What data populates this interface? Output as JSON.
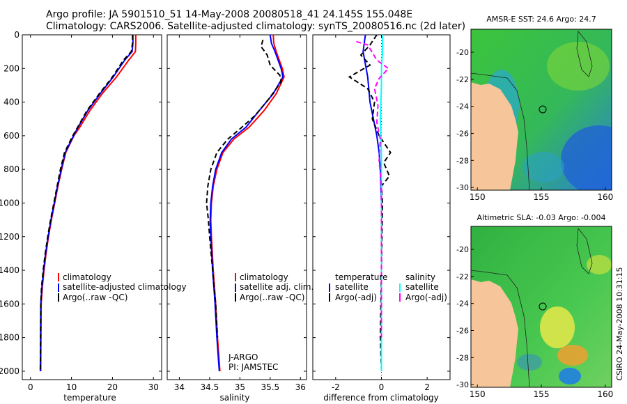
{
  "header": {
    "line1": "Argo profile: JA 5901510_51 14-May-2008 20080518_41 24.145S 155.048E",
    "line2": "Climatology: CARS2006. Satellite-adjusted climatology: synTS_20080516.nc (2d later)"
  },
  "side_label": "CSIRO 24-May-2008 10:31:15",
  "colors": {
    "climatology": "#ff0000",
    "satellite": "#0000ff",
    "argo": "#000000",
    "satellite_salinity": "#00ffff",
    "argo_salinity_adj": "#ff00ff",
    "land": "#f7c59a",
    "map_blue": "#2060e0",
    "map_green": "#3ec84a",
    "map_yellow": "#e8e84a"
  },
  "chart_data": [
    {
      "type": "line",
      "panel": "temperature",
      "xlabel": "temperature",
      "ylabel": "",
      "xlim": [
        -2,
        32
      ],
      "ylim": [
        2050,
        0
      ],
      "xticks": [
        0,
        10,
        20,
        30
      ],
      "yticks": [
        0,
        200,
        400,
        600,
        800,
        1000,
        1200,
        1400,
        1600,
        1800,
        2000
      ],
      "legend": [
        "climatology",
        "satellite-adjusted climatology",
        "Argo(..raw -QC)"
      ],
      "legend_position": "lower-right",
      "series": [
        {
          "name": "climatology",
          "color": "#ff0000",
          "x": [
            25.7,
            25.7,
            25.6,
            24.0,
            21.0,
            17.5,
            14.5,
            12.0,
            10.6,
            9.6,
            8.6,
            7.6,
            6.7,
            5.9,
            5.1,
            4.4,
            3.8,
            3.3,
            2.9,
            2.6,
            2.5
          ],
          "y": [
            0,
            50,
            100,
            150,
            250,
            350,
            450,
            550,
            600,
            650,
            700,
            800,
            900,
            1000,
            1100,
            1200,
            1300,
            1400,
            1500,
            1600,
            2000
          ]
        },
        {
          "name": "satellite-adjusted climatology",
          "color": "#0000ff",
          "x": [
            25.0,
            25.0,
            24.8,
            23.0,
            20.2,
            17.0,
            14.0,
            11.6,
            10.5,
            9.5,
            8.5,
            7.5,
            6.6,
            5.8,
            5.0,
            4.3,
            3.7,
            3.2,
            2.8,
            2.5,
            2.4
          ],
          "y": [
            0,
            50,
            100,
            150,
            250,
            350,
            450,
            550,
            600,
            650,
            700,
            800,
            900,
            1000,
            1100,
            1200,
            1300,
            1400,
            1500,
            1600,
            2000
          ]
        },
        {
          "name": "Argo(..raw -QC)",
          "color": "#000000",
          "x": [
            24.9,
            24.9,
            24.6,
            22.7,
            20.0,
            16.8,
            13.8,
            11.5,
            10.3,
            9.3,
            8.3,
            7.3,
            6.5,
            5.7,
            4.9,
            4.2,
            3.6,
            3.1,
            2.7,
            2.5,
            2.4
          ],
          "y": [
            0,
            50,
            100,
            150,
            250,
            350,
            450,
            550,
            600,
            650,
            700,
            800,
            900,
            1000,
            1100,
            1200,
            1300,
            1400,
            1500,
            1600,
            1990
          ]
        }
      ]
    },
    {
      "type": "line",
      "panel": "salinity",
      "xlabel": "salinity",
      "ylabel": "",
      "xlim": [
        33.8,
        36.1
      ],
      "ylim": [
        2050,
        0
      ],
      "xticks": [
        34,
        34.5,
        35,
        35.5,
        36
      ],
      "legend": [
        "climatology",
        "satellite adj. clim.",
        "Argo(..raw -QC)"
      ],
      "legend_position": "lower-right",
      "annotation": [
        "J-ARGO",
        "PI: JAMSTEC"
      ],
      "series": [
        {
          "name": "climatology",
          "color": "#ff0000",
          "x": [
            35.55,
            35.56,
            35.6,
            35.7,
            35.73,
            35.6,
            35.4,
            35.15,
            34.9,
            34.72,
            34.62,
            34.56,
            34.53,
            34.52,
            34.53,
            34.56,
            34.6,
            34.63,
            34.66,
            34.67
          ],
          "y": [
            0,
            50,
            100,
            200,
            250,
            350,
            450,
            550,
            620,
            700,
            800,
            900,
            1000,
            1100,
            1200,
            1400,
            1600,
            1800,
            1950,
            2000
          ]
        },
        {
          "name": "satellite adj. clim.",
          "color": "#0000ff",
          "x": [
            35.5,
            35.52,
            35.58,
            35.68,
            35.71,
            35.55,
            35.32,
            35.1,
            34.86,
            34.7,
            34.6,
            34.55,
            34.52,
            34.51,
            34.52,
            34.55,
            34.59,
            34.62,
            34.65,
            34.66
          ],
          "y": [
            0,
            50,
            100,
            200,
            250,
            350,
            450,
            550,
            620,
            700,
            800,
            900,
            1000,
            1100,
            1200,
            1400,
            1600,
            1800,
            1950,
            2000
          ]
        },
        {
          "name": "Argo(..raw -QC)",
          "color": "#000000",
          "x": [
            35.38,
            35.35,
            35.45,
            35.5,
            35.66,
            35.68,
            35.48,
            35.25,
            35.0,
            34.8,
            34.62,
            34.52,
            34.47,
            34.45,
            34.48,
            34.5,
            34.55,
            34.6,
            34.63
          ],
          "y": [
            30,
            70,
            120,
            180,
            240,
            280,
            380,
            480,
            560,
            620,
            700,
            800,
            900,
            1000,
            1100,
            1200,
            1400,
            1600,
            1800
          ]
        }
      ]
    },
    {
      "type": "line",
      "panel": "difference",
      "xlabel": "difference from climatology",
      "ylabel": "",
      "xlim": [
        -3.0,
        3.0
      ],
      "ylim": [
        2050,
        0
      ],
      "xticks": [
        -2,
        0,
        2
      ],
      "legend_left_title": "temperature",
      "legend_right_title": "salinity",
      "legend": [
        "satellite",
        "Argo(-adj)",
        "satellite",
        "Argo(-adj)"
      ],
      "series": [
        {
          "name": "temperature satellite",
          "color": "#0000ff",
          "x": [
            -0.7,
            -0.8,
            -0.6,
            -0.5,
            -0.35,
            -0.2,
            -0.1,
            -0.05,
            0.0,
            0.0
          ],
          "y": [
            0,
            100,
            250,
            400,
            500,
            600,
            700,
            800,
            1000,
            2000
          ]
        },
        {
          "name": "temperature Argo(-adj)",
          "color": "#000000",
          "x": [
            -0.2,
            -0.5,
            -0.9,
            -0.5,
            -1.4,
            -0.6,
            -0.3,
            -0.4,
            -0.1,
            0.4,
            0.1,
            0.35,
            0.0,
            0.05,
            0.0,
            -0.05,
            0.0
          ],
          "y": [
            0,
            60,
            120,
            180,
            250,
            320,
            400,
            500,
            600,
            700,
            760,
            840,
            900,
            1000,
            1400,
            1800,
            1990
          ]
        },
        {
          "name": "salinity satellite",
          "color": "#00ffff",
          "x": [
            0.05,
            0.05,
            0.0,
            0.0,
            -0.05,
            0.0,
            0.0,
            0.0
          ],
          "y": [
            0,
            100,
            200,
            300,
            500,
            700,
            1000,
            2000
          ]
        },
        {
          "name": "salinity Argo(-adj)",
          "color": "#ff00ff",
          "x": [
            -1.1,
            -0.6,
            -0.2,
            0.3,
            -0.1,
            -0.3,
            -0.15,
            -0.2,
            -0.05,
            -0.1,
            0.0,
            0.0
          ],
          "y": [
            40,
            60,
            150,
            200,
            260,
            320,
            420,
            520,
            620,
            750,
            900,
            1800
          ]
        }
      ]
    },
    {
      "type": "heatmap",
      "panel": "map-sst",
      "title": "AMSR-E SST: 24.6  Argo: 24.7",
      "xlim": [
        149.5,
        160.5
      ],
      "ylim": [
        -30.2,
        -18.3
      ],
      "xticks": [
        150,
        155,
        160
      ],
      "yticks": [
        -20,
        -22,
        -24,
        -26,
        -28,
        -30
      ],
      "argo_position": {
        "lon": 155.048,
        "lat": -24.145
      }
    },
    {
      "type": "heatmap",
      "panel": "map-sla",
      "title": "Altimetric SLA: -0.03  Argo: -0.004",
      "xlim": [
        149.5,
        160.5
      ],
      "ylim": [
        -30.2,
        -18.3
      ],
      "xticks": [
        150,
        155,
        160
      ],
      "yticks": [
        -20,
        -22,
        -24,
        -26,
        -28,
        -30
      ],
      "argo_position": {
        "lon": 155.048,
        "lat": -24.145
      }
    }
  ]
}
